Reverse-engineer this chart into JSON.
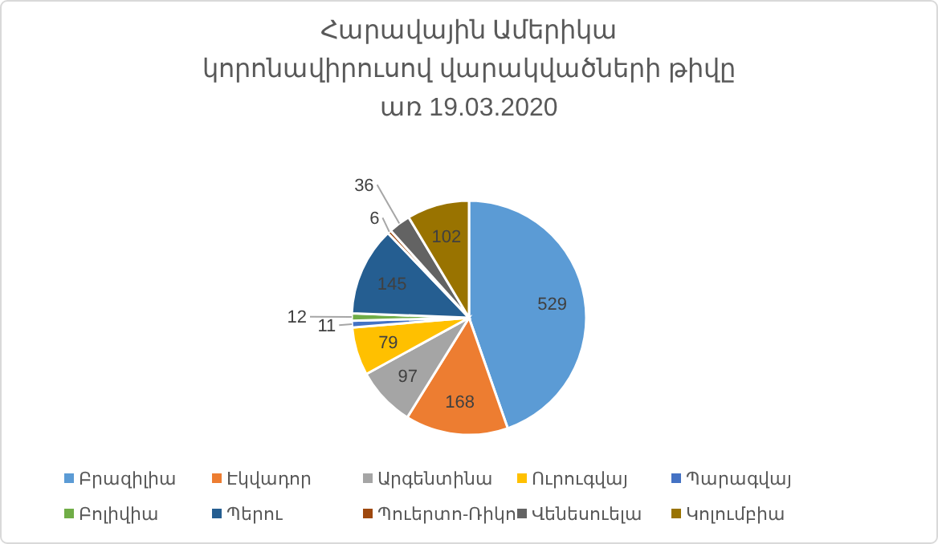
{
  "chart_data": {
    "type": "pie",
    "title": "Հարավային Ամերիկա\nկորոնավիրուսով վարակվածների թիվը\nառ 19.03.2020",
    "categories": [
      "Բրազիլիա",
      "Էկվադոր",
      "Արգենտինա",
      "Ուրուգվայ",
      "Պարագվայ",
      "Բոլիվիա",
      "Պերու",
      "Պուերտո-Ռիկո",
      "Վենեսուելա",
      "Կոլումբիա"
    ],
    "values": [
      529,
      168,
      97,
      79,
      11,
      12,
      145,
      6,
      36,
      102
    ],
    "colors": [
      "#5b9bd5",
      "#ed7d31",
      "#a5a5a5",
      "#ffc000",
      "#4472c4",
      "#70ad47",
      "#255e91",
      "#9e480e",
      "#636363",
      "#997300"
    ],
    "data_labels": true,
    "legend": "bottom"
  }
}
